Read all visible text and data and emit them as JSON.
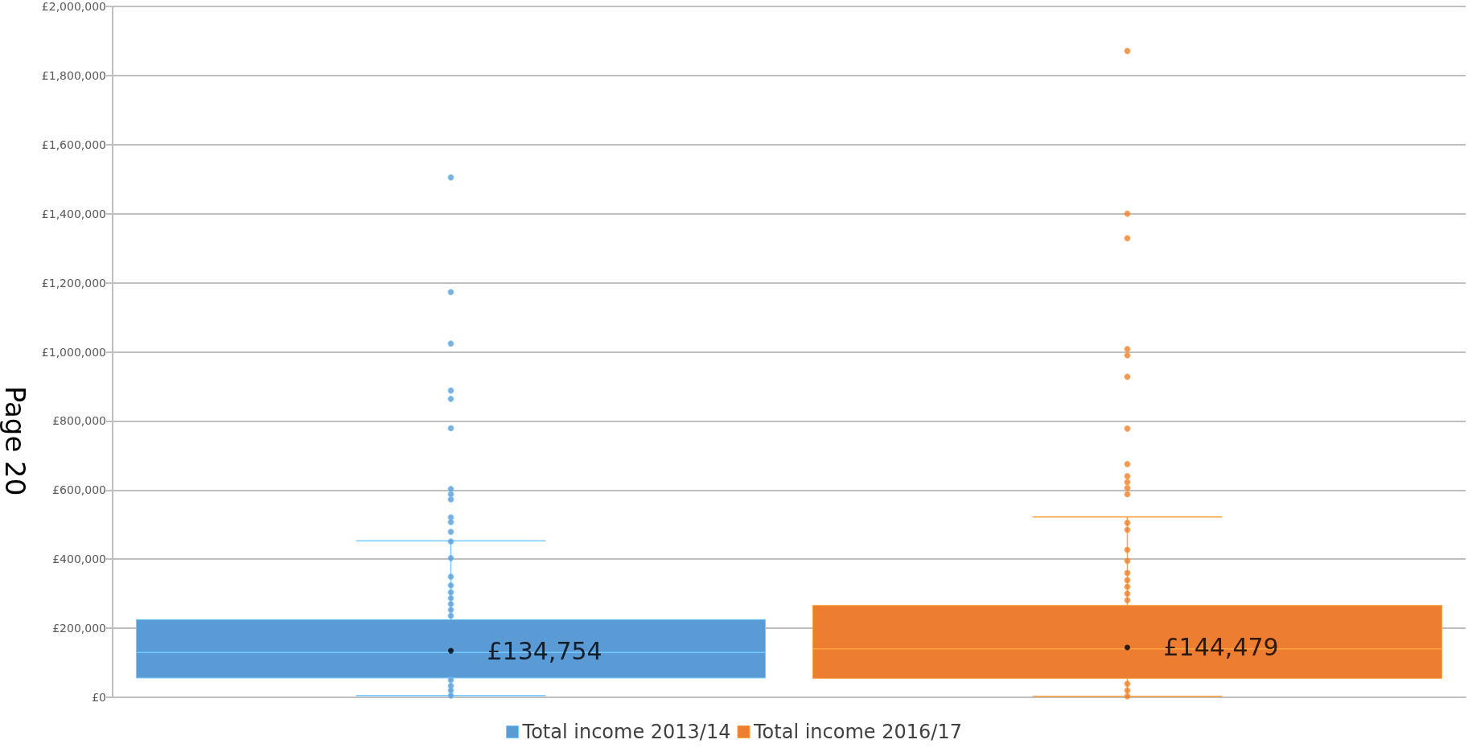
{
  "chart_data": {
    "type": "box",
    "categories": [
      null,
      null
    ],
    "series": [
      {
        "name": "Total income 2013/14",
        "color": "#5b9bd5",
        "boxes": [
          {
            "low": 5000,
            "q1": 56000,
            "median": 130000,
            "q3": 225000,
            "high": 453000,
            "mean": 134754,
            "outliers": [
              1505000,
              1173000,
              1024000,
              888000,
              864000,
              779000,
              603000,
              588000,
              573000,
              521000,
              507000,
              479000,
              451000,
              403000,
              349000,
              324000,
              304000,
              287000,
              270000,
              253000,
              236000,
              50000,
              33000,
              20000,
              5000
            ]
          },
          null
        ]
      },
      {
        "name": "Total income 2016/17",
        "color": "#ed7d31",
        "boxes": [
          null,
          {
            "low": 3000,
            "q1": 55000,
            "median": 140000,
            "q3": 266000,
            "high": 522000,
            "mean": 144479,
            "outliers": [
              1871000,
              1400000,
              1329000,
              1008000,
              990000,
              928000,
              778000,
              675000,
              640000,
              623000,
              606000,
              588000,
              505000,
              485000,
              427000,
              395000,
              360000,
              339000,
              320000,
              300000,
              281000,
              39000,
              20000,
              3000
            ]
          }
        ]
      }
    ],
    "ylim": [
      0,
      2000000
    ],
    "yticks": [
      {
        "value": 0,
        "label": "£0"
      },
      {
        "value": 200000,
        "label": "£200,000"
      },
      {
        "value": 400000,
        "label": "£400,000"
      },
      {
        "value": 600000,
        "label": "£600,000"
      },
      {
        "value": 800000,
        "label": "£800,000"
      },
      {
        "value": 1000000,
        "label": "£1,000,000"
      },
      {
        "value": 1200000,
        "label": "£1,200,000"
      },
      {
        "value": 1400000,
        "label": "£1,400,000"
      },
      {
        "value": 1600000,
        "label": "£1,600,000"
      },
      {
        "value": 1800000,
        "label": "£1,800,000"
      },
      {
        "value": 2000000,
        "label": "£2,000,000"
      }
    ],
    "grid": "y",
    "legend": "bottom",
    "annotations": [
      {
        "text": "£134,754",
        "y": 134754
      },
      {
        "text": "£144,479",
        "y": 144479
      },
      "Page 20"
    ]
  }
}
